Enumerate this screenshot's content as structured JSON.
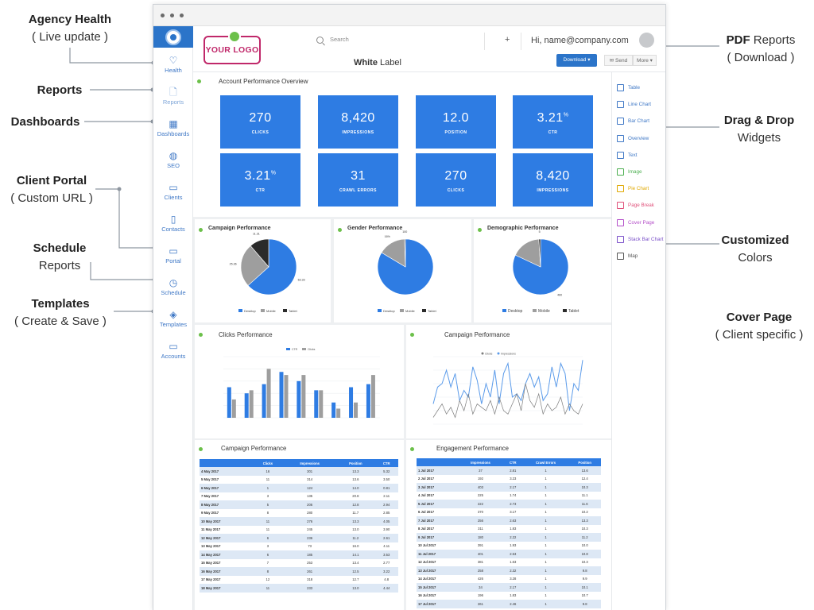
{
  "annotations": {
    "agency_health": {
      "bold": "Agency Health",
      "normal": "( Live update )"
    },
    "reports": {
      "bold": "Reports"
    },
    "dashboards": {
      "bold": "Dashboards"
    },
    "client_portal": {
      "bold": "Client Portal",
      "normal": "( Custom URL )"
    },
    "schedule": {
      "bold": "Schedule",
      "normal": "Reports"
    },
    "templates": {
      "bold": "Templates",
      "normal": "( Create & Save )"
    },
    "pdf_reports": {
      "bold": "PDF",
      "normal": " Reports",
      "sub": "( Download )"
    },
    "drag_drop": {
      "bold": "Drag & Drop",
      "normal": "Widgets"
    },
    "customized": {
      "bold": "Customized",
      "normal": "Colors"
    },
    "cover_page": {
      "bold": "Cover Page",
      "normal": "( Client specific )"
    }
  },
  "sidebar": {
    "items": [
      {
        "label": "Health",
        "icon": "heart-icon"
      },
      {
        "label": "Reports",
        "icon": "document-icon"
      },
      {
        "label": "Dashboards",
        "icon": "grid-icon"
      },
      {
        "label": "SEO",
        "icon": "globe-icon"
      },
      {
        "label": "Clients",
        "icon": "briefcase-icon"
      },
      {
        "label": "Contacts",
        "icon": "phone-icon"
      },
      {
        "label": "Portal",
        "icon": "monitor-icon"
      },
      {
        "label": "Schedule",
        "icon": "clock-icon"
      },
      {
        "label": "Templates",
        "icon": "layers-icon"
      },
      {
        "label": "Accounts",
        "icon": "folder-icon"
      }
    ]
  },
  "header": {
    "logo_text": "YOUR LOGO",
    "white_label_bold": "White",
    "white_label_rest": " Label",
    "search_placeholder": "Search",
    "plus": "+",
    "user": "Hi, name@company.com",
    "download": "Download ▾",
    "send": "✉ Send",
    "more": "More ▾"
  },
  "widgets": [
    {
      "label": "Table",
      "icon": "table-icon",
      "color": "#3f78c6"
    },
    {
      "label": "Line Chart",
      "icon": "line-chart-icon",
      "color": "#3f78c6"
    },
    {
      "label": "Bar Chart",
      "icon": "bar-chart-icon",
      "color": "#3f78c6"
    },
    {
      "label": "Overview",
      "icon": "overview-icon",
      "color": "#3f78c6"
    },
    {
      "label": "Text",
      "icon": "text-icon",
      "color": "#3f78c6"
    },
    {
      "label": "Image",
      "icon": "image-icon",
      "color": "#4caf50"
    },
    {
      "label": "Pie Chart",
      "icon": "pie-chart-icon",
      "color": "#e0a800"
    },
    {
      "label": "Page Break",
      "icon": "page-break-icon",
      "color": "#e0507a"
    },
    {
      "label": "Cover Page",
      "icon": "cover-page-icon",
      "color": "#b44fc9"
    },
    {
      "label": "Stack Bar Chart",
      "icon": "stack-bar-icon",
      "color": "#7a4fc9"
    },
    {
      "label": "Map",
      "icon": "map-icon",
      "color": "#555555"
    }
  ],
  "overview": {
    "title": "Account Performance Overview",
    "tiles": [
      {
        "value": "270",
        "label": "CLICKS",
        "sup": ""
      },
      {
        "value": "8,420",
        "label": "IMPRESSIONS",
        "sup": ""
      },
      {
        "value": "12.0",
        "label": "POSITION",
        "sup": ""
      },
      {
        "value": "3.21",
        "label": "CTR",
        "sup": "%"
      },
      {
        "value": "3.21",
        "label": "CTR",
        "sup": "%"
      },
      {
        "value": "31",
        "label": "CRAWL ERRORS",
        "sup": ""
      },
      {
        "value": "270",
        "label": "CLICKS",
        "sup": ""
      },
      {
        "value": "8,420",
        "label": "IMPRESSIONS",
        "sup": ""
      }
    ]
  },
  "colors": {
    "desktop": "#2e7ce3",
    "mobile": "#9e9e9e",
    "tablet": "#2b2b2b",
    "accent": "#2b74c9",
    "dot": "#6cc04a"
  },
  "pie_panels": [
    {
      "title": "Campaign Performance",
      "slices": [
        {
          "name": "Desktop",
          "value": 63.33
        },
        {
          "name": "Mobile",
          "value": 25.36
        },
        {
          "name": "Tablet",
          "value": 11.31
        }
      ],
      "labels": [
        "63.33",
        "25.36",
        "11.31"
      ],
      "legend": [
        "Desktop",
        "Mobile",
        "Tablet"
      ]
    },
    {
      "title": "Gender Performance",
      "slices": [
        {
          "name": "Desktop",
          "value": 84
        },
        {
          "name": "Mobile",
          "value": 16
        },
        {
          "name": "Tablet",
          "value": 0.5
        }
      ],
      "labels": [
        "",
        "16%",
        "100"
      ],
      "legend": [
        "Desktop",
        "Mobile",
        "Tablet"
      ]
    },
    {
      "title": "Demographic Performance",
      "slices": [
        {
          "name": "Desktop",
          "value": 82
        },
        {
          "name": "Mobile",
          "value": 17
        },
        {
          "name": "Tablet",
          "value": 1
        }
      ],
      "labels": [
        "460",
        "",
        "5"
      ],
      "legend": [
        "Desktop",
        "Mobile",
        "Tablet"
      ]
    }
  ],
  "chart_data": [
    {
      "type": "bar",
      "title": "Clicks Performance",
      "legend": [
        "CTR",
        "Clicks"
      ],
      "series": [
        {
          "name": "CTR",
          "values": [
            5,
            4,
            5.5,
            7.5,
            6,
            4.5,
            2.5,
            5,
            5.5
          ]
        },
        {
          "name": "Clicks",
          "values": [
            3,
            4.5,
            8,
            7,
            7,
            4.5,
            1.5,
            2.5,
            7
          ]
        }
      ],
      "ylim": [
        0,
        10
      ]
    },
    {
      "type": "line",
      "title": "Campaign Performance",
      "legend": [
        "Clicks",
        "Impressions"
      ],
      "series": [
        {
          "name": "Impressions",
          "values": [
            30,
            55,
            60,
            80,
            55,
            75,
            35,
            50,
            40,
            85,
            65,
            30,
            60,
            40,
            80,
            30,
            75,
            90,
            40,
            45,
            35,
            60,
            75,
            55,
            70,
            35,
            45,
            85,
            55,
            90,
            75,
            20,
            60,
            50,
            95
          ]
        },
        {
          "name": "Clicks",
          "values": [
            10,
            20,
            30,
            15,
            25,
            10,
            35,
            20,
            45,
            15,
            30,
            25,
            20,
            35,
            15,
            40,
            20,
            15,
            30,
            45,
            20,
            60,
            35,
            25,
            45,
            15,
            30,
            20,
            25,
            40,
            15,
            30,
            20,
            15,
            30
          ]
        }
      ],
      "ylim": [
        0,
        100
      ]
    }
  ],
  "campaign_table": {
    "title": "Campaign Performance",
    "headers": [
      "",
      "Clicks",
      "Impressions",
      "Position",
      "CTR"
    ],
    "rows": [
      [
        "4 May 2017",
        "16",
        "301",
        "13.3",
        "5.32"
      ],
      [
        "5 May 2017",
        "11",
        "314",
        "13.6",
        "3.50"
      ],
      [
        "6 May 2017",
        "1",
        "124",
        "14.0",
        "0.81"
      ],
      [
        "7 May 2017",
        "3",
        "135",
        "20.8",
        "2.11"
      ],
      [
        "8 May 2017",
        "5",
        "206",
        "12.8",
        "2.94"
      ],
      [
        "9 May 2017",
        "8",
        "280",
        "11.7",
        "2.85"
      ],
      [
        "10 May 2017",
        "11",
        "276",
        "13.3",
        "4.05"
      ],
      [
        "11 May 2017",
        "11",
        "245",
        "13.0",
        "3.90"
      ],
      [
        "12 May 2017",
        "6",
        "236",
        "11.2",
        "2.61"
      ],
      [
        "13 May 2017",
        "3",
        "73",
        "16.0",
        "4.11"
      ],
      [
        "14 May 2017",
        "6",
        "185",
        "14.1",
        "3.53"
      ],
      [
        "15 May 2017",
        "7",
        "253",
        "13.4",
        "2.77"
      ],
      [
        "16 May 2017",
        "8",
        "261",
        "12.5",
        "3.22"
      ],
      [
        "17 May 2017",
        "12",
        "318",
        "12.7",
        "4.8"
      ],
      [
        "18 May 2017",
        "11",
        "233",
        "13.0",
        "4.44"
      ]
    ]
  },
  "engagement_table": {
    "title": "Engagement Performance",
    "headers": [
      "",
      "Impressions",
      "CTR",
      "Crawl Errors",
      "Position"
    ],
    "rows": [
      [
        "1 Jul 2017",
        "37",
        "2.81",
        "1",
        "13.6"
      ],
      [
        "2 Jul 2017",
        "192",
        "3.23",
        "1",
        "12.4"
      ],
      [
        "3 Jul 2017",
        "403",
        "2.17",
        "1",
        "10.3"
      ],
      [
        "4 Jul 2017",
        "225",
        "1.74",
        "1",
        "11.1"
      ],
      [
        "5 Jul 2017",
        "222",
        "2.73",
        "1",
        "11.6"
      ],
      [
        "6 Jul 2017",
        "370",
        "3.17",
        "1",
        "10.2"
      ],
      [
        "7 Jul 2017",
        "256",
        "2.63",
        "1",
        "13.3"
      ],
      [
        "8 Jul 2017",
        "311",
        "1.83",
        "1",
        "10.3"
      ],
      [
        "9 Jul 2017",
        "180",
        "2.22",
        "1",
        "11.2"
      ],
      [
        "10 Jul 2017",
        "391",
        "1.93",
        "1",
        "10.0"
      ],
      [
        "11 Jul 2017",
        "401",
        "2.53",
        "1",
        "10.8"
      ],
      [
        "12 Jul 2017",
        "381",
        "1.63",
        "1",
        "10.3"
      ],
      [
        "13 Jul 2017",
        "258",
        "2.32",
        "1",
        "9.8"
      ],
      [
        "14 Jul 2017",
        "426",
        "3.28",
        "1",
        "9.9"
      ],
      [
        "15 Jul 2017",
        "34",
        "2.17",
        "1",
        "10.1"
      ],
      [
        "16 Jul 2017",
        "196",
        "1.83",
        "1",
        "10.7"
      ],
      [
        "17 Jul 2017",
        "261",
        "2.46",
        "1",
        "9.8"
      ]
    ]
  }
}
